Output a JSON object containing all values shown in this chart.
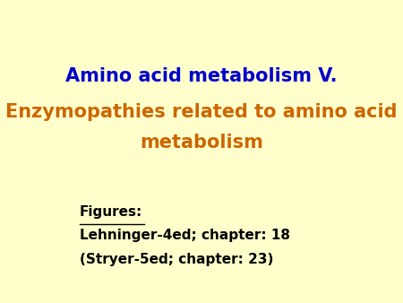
{
  "background_color": "#ffffcc",
  "title_line1": "Amino acid metabolism V.",
  "title_line1_color": "#0000cc",
  "title_line2": "Enzymopathies related to amino acid",
  "title_line3": "metabolism",
  "title_line23_color": "#cc6600",
  "title_fontsize": 15,
  "title_fontweight": "bold",
  "figures_label": "Figures:",
  "figures_label_color": "#000000",
  "figures_fontsize": 11,
  "ref1": "Lehninger-4ed; chapter: 18",
  "ref2": "(Stryer-5ed; chapter: 23)",
  "ref_color": "#000000",
  "ref_fontsize": 11,
  "ref_fontweight": "bold"
}
